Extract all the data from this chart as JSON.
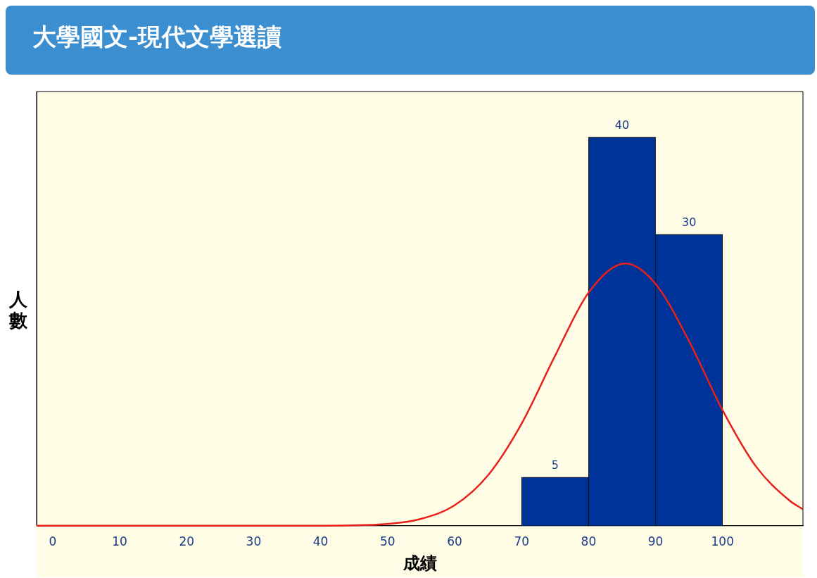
{
  "chart_data": {
    "type": "histogram",
    "title": "大學國文-現代文學選讀",
    "xlabel": "成績",
    "ylabel": "人數",
    "bins": [
      70,
      80,
      90,
      100
    ],
    "values": [
      5,
      40,
      30
    ],
    "color": "#003399",
    "value_labels": [
      "5",
      "40",
      "30"
    ],
    "series": [
      {
        "type": "line",
        "color": "#e8201a",
        "x": [
          -2.4,
          10,
          20,
          30,
          40,
          50,
          55,
          60,
          65,
          70,
          75,
          80,
          85.5,
          90,
          95,
          100,
          105,
          110,
          112
        ],
        "values": [
          0,
          0,
          0,
          0,
          0.01,
          0.19,
          0.71,
          2.1,
          5.2,
          10.5,
          17.5,
          24.0,
          27.0,
          24.9,
          19.0,
          11.9,
          6.1,
          2.6,
          1.7
        ]
      }
    ],
    "xlim": [
      -2.4,
      112
    ],
    "xticks": [
      0,
      10,
      20,
      30,
      40,
      50,
      60,
      70,
      80,
      90,
      100
    ],
    "ylim": [
      0,
      44.7
    ],
    "tick_labels": "x",
    "grid": false,
    "legend": false
  }
}
